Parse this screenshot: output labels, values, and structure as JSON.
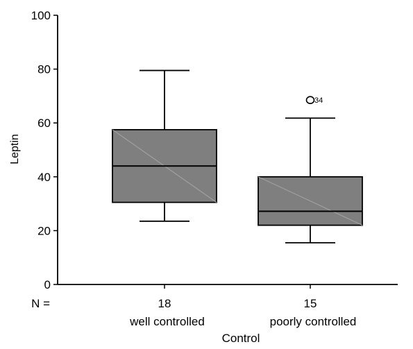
{
  "chart_data": {
    "type": "boxplot",
    "xlabel": "Control",
    "ylabel": "Leptin",
    "ylim": [
      0,
      100
    ],
    "yticks": [
      0,
      20,
      40,
      60,
      80,
      100
    ],
    "n_label": "N =",
    "grid": false,
    "box_color": "#7f7f7f",
    "groups": [
      {
        "category": "well controlled",
        "n": "18",
        "whisker_low": 23.5,
        "q1": 30.5,
        "median": 44,
        "q3": 57.5,
        "whisker_high": 79.5,
        "outliers": []
      },
      {
        "category": "poorly controlled",
        "n": "15",
        "whisker_low": 15.5,
        "q1": 22,
        "median": 27.2,
        "q3": 40,
        "whisker_high": 61.8,
        "outliers": [
          {
            "value": 68.5,
            "label": "34"
          }
        ]
      }
    ]
  }
}
